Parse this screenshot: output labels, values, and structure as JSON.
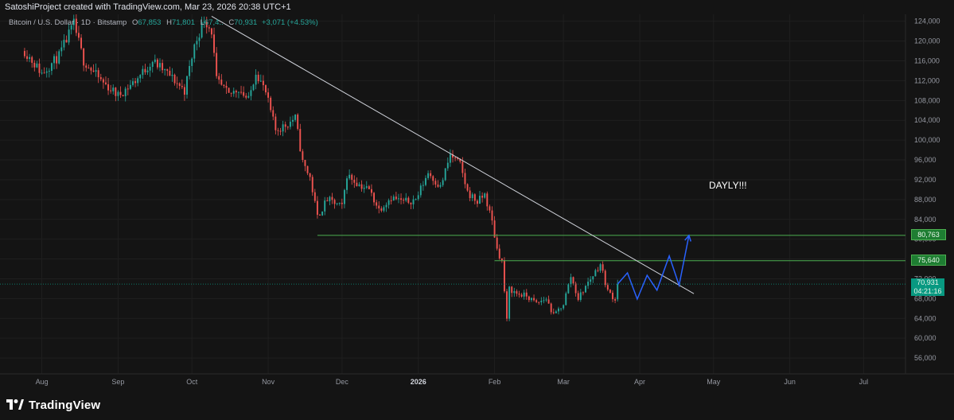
{
  "header": {
    "text": "SatoshiProject created with TradingView.com, Mar 23, 2026 20:38 UTC+1"
  },
  "symbol": {
    "name": "Bitcoin / U.S. Dollar · 1D · Bitstamp",
    "open_label": "O",
    "open": "67,853",
    "high_label": "H",
    "high": "71,801",
    "low_label": "L",
    "low": "67,4..",
    "close_label": "C",
    "close": "70,931",
    "change": "+3,071 (+4.53%)"
  },
  "annotation": {
    "text": "DAYLY!!!"
  },
  "price_tags": {
    "level_upper": "80,763",
    "level_lower": "75,640",
    "last_price": "70,931",
    "countdown": "04:21:16"
  },
  "footer": {
    "brand": "TradingView"
  },
  "colors": {
    "up": "#26a69a",
    "down": "#ef5350",
    "trendline": "#d1d4dc",
    "levels": "#4caf50",
    "projection": "#2962ff",
    "background": "#141414",
    "last_price_tag": "#089981"
  },
  "chart_data": {
    "type": "candlestick",
    "title": "Bitcoin / U.S. Dollar · 1D · Bitstamp",
    "y_axis": {
      "ticks": [
        56000,
        60000,
        64000,
        68000,
        72000,
        76000,
        80000,
        84000,
        88000,
        92000,
        96000,
        100000,
        104000,
        108000,
        112000,
        116000,
        120000,
        124000
      ],
      "position": "right"
    },
    "x_axis": {
      "ticks": [
        "Aug",
        "Sep",
        "Oct",
        "Nov",
        "Dec",
        "2026",
        "Feb",
        "Mar",
        "Apr",
        "May",
        "Jun",
        "Jul"
      ]
    },
    "series": [
      {
        "name": "BTCUSD",
        "kind": "daily close (approx.)",
        "points": [
          {
            "date": "2025-07-25",
            "value": 118000
          },
          {
            "date": "2025-08-01",
            "value": 113500
          },
          {
            "date": "2025-08-08",
            "value": 117000
          },
          {
            "date": "2025-08-14",
            "value": 123500
          },
          {
            "date": "2025-08-18",
            "value": 116000
          },
          {
            "date": "2025-08-25",
            "value": 112000
          },
          {
            "date": "2025-09-01",
            "value": 109000
          },
          {
            "date": "2025-09-08",
            "value": 112000
          },
          {
            "date": "2025-09-15",
            "value": 116000
          },
          {
            "date": "2025-09-22",
            "value": 113000
          },
          {
            "date": "2025-09-28",
            "value": 110000
          },
          {
            "date": "2025-10-02",
            "value": 119000
          },
          {
            "date": "2025-10-06",
            "value": 124500
          },
          {
            "date": "2025-10-09",
            "value": 122000
          },
          {
            "date": "2025-10-11",
            "value": 112000
          },
          {
            "date": "2025-10-16",
            "value": 109000
          },
          {
            "date": "2025-10-20",
            "value": 110500
          },
          {
            "date": "2025-10-24",
            "value": 108000
          },
          {
            "date": "2025-10-27",
            "value": 114000
          },
          {
            "date": "2025-10-31",
            "value": 109500
          },
          {
            "date": "2025-11-04",
            "value": 102000
          },
          {
            "date": "2025-11-08",
            "value": 103000
          },
          {
            "date": "2025-11-12",
            "value": 104500
          },
          {
            "date": "2025-11-15",
            "value": 95500
          },
          {
            "date": "2025-11-18",
            "value": 92500
          },
          {
            "date": "2025-11-21",
            "value": 84500
          },
          {
            "date": "2025-11-25",
            "value": 88000
          },
          {
            "date": "2025-12-01",
            "value": 86500
          },
          {
            "date": "2025-12-03",
            "value": 93000
          },
          {
            "date": "2025-12-08",
            "value": 91000
          },
          {
            "date": "2025-12-12",
            "value": 90000
          },
          {
            "date": "2025-12-16",
            "value": 86000
          },
          {
            "date": "2025-12-21",
            "value": 88500
          },
          {
            "date": "2025-12-26",
            "value": 87500
          },
          {
            "date": "2025-12-31",
            "value": 88000
          },
          {
            "date": "2026-01-05",
            "value": 93500
          },
          {
            "date": "2026-01-10",
            "value": 90500
          },
          {
            "date": "2026-01-14",
            "value": 97000
          },
          {
            "date": "2026-01-18",
            "value": 95000
          },
          {
            "date": "2026-01-21",
            "value": 89500
          },
          {
            "date": "2026-01-25",
            "value": 87500
          },
          {
            "date": "2026-01-28",
            "value": 89000
          },
          {
            "date": "2026-01-31",
            "value": 83500
          },
          {
            "date": "2026-02-02",
            "value": 78000
          },
          {
            "date": "2026-02-04",
            "value": 75500
          },
          {
            "date": "2026-02-06",
            "value": 63500
          },
          {
            "date": "2026-02-07",
            "value": 70000
          },
          {
            "date": "2026-02-10",
            "value": 69000
          },
          {
            "date": "2026-02-14",
            "value": 68500
          },
          {
            "date": "2026-02-18",
            "value": 67000
          },
          {
            "date": "2026-02-22",
            "value": 68000
          },
          {
            "date": "2026-02-25",
            "value": 64500
          },
          {
            "date": "2026-03-01",
            "value": 67000
          },
          {
            "date": "2026-03-04",
            "value": 72500
          },
          {
            "date": "2026-03-07",
            "value": 68000
          },
          {
            "date": "2026-03-10",
            "value": 70500
          },
          {
            "date": "2026-03-14",
            "value": 73500
          },
          {
            "date": "2026-03-16",
            "value": 75000
          },
          {
            "date": "2026-03-19",
            "value": 69500
          },
          {
            "date": "2026-03-22",
            "value": 67853
          },
          {
            "date": "2026-03-23",
            "value": 70931
          }
        ]
      },
      {
        "name": "trendline",
        "points": [
          {
            "date": "2025-10-09",
            "value": 125000
          },
          {
            "date": "2026-04-23",
            "value": 69000
          }
        ]
      },
      {
        "name": "projection",
        "points": [
          {
            "date": "2026-03-23",
            "value": 70931
          },
          {
            "date": "2026-03-27",
            "value": 73200
          },
          {
            "date": "2026-03-31",
            "value": 67900
          },
          {
            "date": "2026-04-04",
            "value": 72700
          },
          {
            "date": "2026-04-08",
            "value": 69700
          },
          {
            "date": "2026-04-13",
            "value": 76600
          },
          {
            "date": "2026-04-17",
            "value": 70700
          },
          {
            "date": "2026-04-21",
            "value": 80763
          }
        ]
      }
    ],
    "horizontal_levels": [
      {
        "value": 80763,
        "from": "2025-11-21"
      },
      {
        "value": 75640,
        "from": "2026-02-01"
      },
      {
        "value": 70931,
        "kind": "last price"
      }
    ],
    "last": {
      "open": 67853,
      "high": 71801,
      "close": 70931,
      "change": 3071,
      "change_pct": 4.53
    },
    "grid": true,
    "legend": "top-left"
  }
}
